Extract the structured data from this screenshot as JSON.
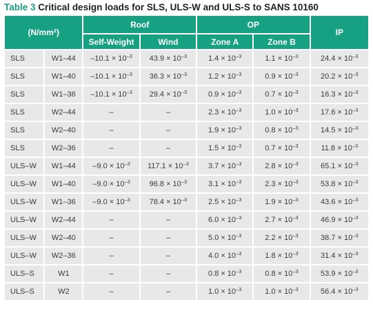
{
  "caption": {
    "number": "Table 3",
    "title": "Critical design loads for SLS, ULS-W and ULS-S to SANS 10160"
  },
  "header": {
    "units": "(N/mm",
    "units_exp": "2",
    "units_close": ")",
    "roof": "Roof",
    "op": "OP",
    "ip": "IP",
    "self_weight": "Self-Weight",
    "wind": "Wind",
    "zone_a": "Zone A",
    "zone_b": "Zone B"
  },
  "rows": [
    [
      "SLS",
      "W1–44",
      "–10.1 × 10",
      "–3",
      "43.9 × 10",
      "–3",
      "1.4 × 10",
      "–3",
      "1.1 × 10",
      "–3",
      "24.4 × 10",
      "–3"
    ],
    [
      "SLS",
      "W1–40",
      "–10.1 × 10",
      "–3",
      "36.3 × 10",
      "–3",
      "1.2 × 10",
      "–3",
      "0.9 × 10",
      "–3",
      "20.2 × 10",
      "–3"
    ],
    [
      "SLS",
      "W1–36",
      "–10.1 × 10",
      "–3",
      "29.4 × 10",
      "–3",
      "0.9 × 10",
      "–3",
      "0.7 × 10",
      "–3",
      "16.3 × 10",
      "–3"
    ],
    [
      "SLS",
      "W2–44",
      "–",
      "",
      "–",
      "",
      "2.3 × 10",
      "–3",
      "1.0 × 10",
      "–3",
      "17.6 × 10",
      "–3"
    ],
    [
      "SLS",
      "W2–40",
      "–",
      "",
      "–",
      "",
      "1.9 × 10",
      "–3",
      "0.8 × 10",
      "–3",
      "14.5 × 10",
      "–3"
    ],
    [
      "SLS",
      "W2–36",
      "–",
      "",
      "–",
      "",
      "1.5 × 10",
      "–3",
      "0.7 × 10",
      "–3",
      "11.8 × 10",
      "–3"
    ],
    [
      "ULS–W",
      "W1–44",
      "–9.0 × 10",
      "–3",
      "117.1 × 10",
      "–3",
      "3.7 × 10",
      "–3",
      "2.8 × 10",
      "–3",
      "65.1 × 10",
      "–3"
    ],
    [
      "ULS–W",
      "W1–40",
      "–9.0 × 10",
      "–3",
      "96.8 × 10",
      "–3",
      "3.1 × 10",
      "–3",
      "2.3 × 10",
      "–3",
      "53.8 × 10",
      "–3"
    ],
    [
      "ULS–W",
      "W1–36",
      "–9.0 × 10",
      "–3",
      "78.4 × 10",
      "–3",
      "2.5 × 10",
      "–3",
      "1.9 × 10",
      "–3",
      "43.6 × 10",
      "–3"
    ],
    [
      "ULS–W",
      "W2–44",
      "–",
      "",
      "–",
      "",
      "6.0 × 10",
      "–3",
      "2.7 × 10",
      "–3",
      "46.9 × 10",
      "–3"
    ],
    [
      "ULS–W",
      "W2–40",
      "–",
      "",
      "–",
      "",
      "5.0 × 10",
      "–3",
      "2.2 × 10",
      "–3",
      "38.7 × 10",
      "–3"
    ],
    [
      "ULS–W",
      "W2–36",
      "–",
      "",
      "–",
      "",
      "4.0 × 10",
      "–3",
      "1.8 × 10",
      "–3",
      "31.4 × 10",
      "–3"
    ],
    [
      "ULS–S",
      "W1",
      "–",
      "",
      "–",
      "",
      "0.8 × 10",
      "–3",
      "0.8 × 10",
      "–3",
      "53.9 × 10",
      "–3"
    ],
    [
      "ULS–S",
      "W2",
      "–",
      "",
      "–",
      "",
      "1.0 × 10",
      "–3",
      "1.0 × 10",
      "–3",
      "56.4 × 10",
      "–3"
    ]
  ]
}
